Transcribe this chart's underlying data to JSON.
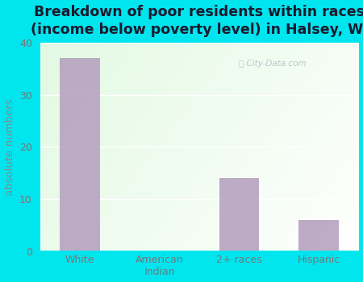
{
  "categories": [
    "White",
    "American\nIndian",
    "2+ races",
    "Hispanic"
  ],
  "values": [
    37,
    0,
    14,
    6
  ],
  "bar_color": "#b39dbd",
  "title": "Breakdown of poor residents within races\n(income below poverty level) in Halsey, WI",
  "ylabel": "absolute numbers",
  "ylim": [
    0,
    40
  ],
  "yticks": [
    0,
    10,
    20,
    30,
    40
  ],
  "bg_outer": "#00e5ee",
  "bg_plot_topleft": "#d4edd4",
  "bg_plot_center": "#e8f4e8",
  "bg_plot_right": "#f5faf5",
  "title_fontsize": 12.5,
  "ylabel_fontsize": 9.5,
  "tick_fontsize": 9,
  "watermark": "City-Data.com",
  "title_color": "#1a1a2e",
  "ylabel_color": "#888888",
  "tick_color": "#777777"
}
